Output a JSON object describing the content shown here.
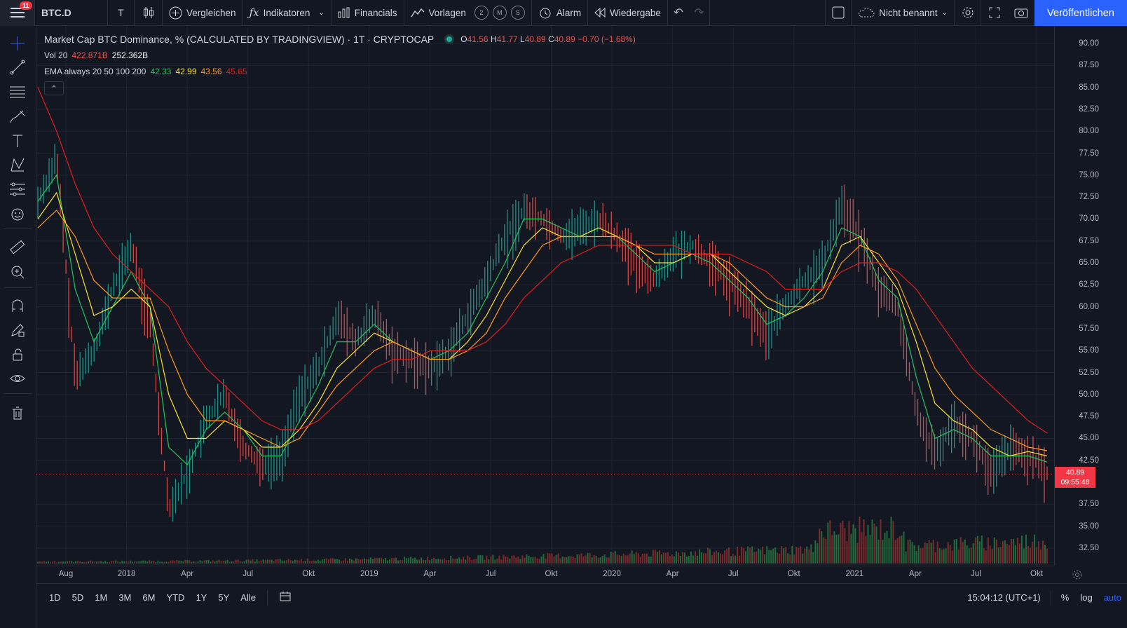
{
  "topbar": {
    "badge": "11",
    "symbol": "BTC.D",
    "interval": "T",
    "compare": "Vergleichen",
    "indicators": "Indikatoren",
    "financials": "Financials",
    "templates": "Vorlagen",
    "circles": [
      "2",
      "M",
      "S"
    ],
    "alarm": "Alarm",
    "replay": "Wiedergabe",
    "layout_name": "Nicht benannt",
    "publish": "Veröffentlichen"
  },
  "legend": {
    "title": "Market Cap BTC Dominance, % (CALCULATED BY TRADINGVIEW) · 1T · CRYPTOCAP",
    "ohlc": {
      "o_label": "O",
      "o": "41.56",
      "h_label": "H",
      "h": "41.77",
      "l_label": "L",
      "l": "40.89",
      "c_label": "C",
      "c": "40.89",
      "change": "−0.70 (−1.68%)"
    },
    "vol": {
      "label": "Vol 20",
      "v1": "422.871B",
      "v2": "252.362B"
    },
    "ema": {
      "label": "EMA always 20 50 100 200",
      "v20": "42.33",
      "v50": "42.99",
      "v100": "43.56",
      "v200": "45.65"
    }
  },
  "colors": {
    "ema20": "#22c55e",
    "ema50": "#fbe32b",
    "ema100": "#ff9a1f",
    "ema200": "#e21d1d",
    "up": "#26a69a",
    "down": "#ef5350",
    "accent": "#2962ff"
  },
  "chart_data": {
    "type": "line",
    "title": "Market Cap BTC Dominance, % (CALCULATED BY TRADINGVIEW) · 1T · CRYPTOCAP",
    "ylim": [
      30.5,
      92
    ],
    "y_ticks": [
      "90.00",
      "87.50",
      "85.00",
      "82.50",
      "80.00",
      "77.50",
      "75.00",
      "72.50",
      "70.00",
      "67.50",
      "65.00",
      "62.50",
      "60.00",
      "57.50",
      "55.00",
      "52.50",
      "50.00",
      "47.50",
      "45.00",
      "42.50",
      "37.50",
      "35.00",
      "32.50"
    ],
    "x_ticks": [
      "Aug",
      "2018",
      "Apr",
      "Jul",
      "Okt",
      "2019",
      "Apr",
      "Jul",
      "Okt",
      "2020",
      "Apr",
      "Jul",
      "Okt",
      "2021",
      "Apr",
      "Jul",
      "Okt"
    ],
    "last_price": "40.89",
    "countdown": "09:55:48",
    "series": [
      {
        "name": "BTC.D",
        "x": [
          "2017-06",
          "2017-07",
          "2017-08",
          "2017-09",
          "2017-10",
          "2017-11",
          "2017-12",
          "2018-01",
          "2018-02",
          "2018-03",
          "2018-04",
          "2018-05",
          "2018-06",
          "2018-07",
          "2018-08",
          "2018-09",
          "2018-10",
          "2018-11",
          "2018-12",
          "2019-01",
          "2019-02",
          "2019-03",
          "2019-04",
          "2019-05",
          "2019-06",
          "2019-07",
          "2019-08",
          "2019-09",
          "2019-10",
          "2019-11",
          "2019-12",
          "2020-01",
          "2020-02",
          "2020-03",
          "2020-04",
          "2020-05",
          "2020-06",
          "2020-07",
          "2020-08",
          "2020-09",
          "2020-10",
          "2020-11",
          "2020-12",
          "2021-01",
          "2021-02",
          "2021-03",
          "2021-04",
          "2021-05",
          "2021-06",
          "2021-07",
          "2021-08",
          "2021-09",
          "2021-10",
          "2021-11",
          "2021-12"
        ],
        "values": [
          72,
          77,
          52,
          55,
          62,
          67,
          58,
          37,
          41,
          47,
          50,
          44,
          42,
          43,
          50,
          53,
          59,
          56,
          59,
          55,
          54,
          53,
          55,
          59,
          63,
          68,
          71,
          70,
          68,
          69,
          70,
          68,
          65,
          63,
          66,
          67,
          65,
          63,
          60,
          57,
          60,
          63,
          65,
          72,
          68,
          62,
          60,
          48,
          43,
          47,
          45,
          41,
          44,
          43,
          41
        ]
      },
      {
        "name": "EMA 20",
        "values": [
          72,
          75,
          62,
          56,
          60,
          64,
          60,
          44,
          42,
          46,
          48,
          46,
          43,
          43,
          47,
          51,
          56,
          56,
          58,
          56,
          55,
          54,
          55,
          57,
          61,
          65,
          70,
          70,
          69,
          68,
          69,
          68,
          66,
          64,
          65,
          66,
          65,
          63,
          61,
          58,
          59,
          61,
          64,
          69,
          68,
          63,
          61,
          52,
          45,
          46,
          45,
          43,
          43,
          43,
          42.3
        ]
      },
      {
        "name": "EMA 50",
        "values": [
          70,
          73,
          66,
          59,
          60,
          62,
          60,
          50,
          45,
          45,
          47,
          46,
          44,
          44,
          46,
          49,
          53,
          55,
          57,
          56,
          55,
          54,
          54,
          56,
          59,
          63,
          67,
          69,
          68,
          68,
          69,
          68,
          67,
          65,
          65,
          66,
          66,
          64,
          62,
          60,
          59,
          60,
          62,
          67,
          68,
          65,
          62,
          56,
          49,
          47,
          46,
          44,
          43,
          43.5,
          43
        ]
      },
      {
        "name": "EMA 100",
        "values": [
          69,
          71,
          68,
          63,
          61,
          61,
          61,
          55,
          50,
          47,
          47,
          46,
          45,
          44,
          45,
          48,
          51,
          53,
          55,
          56,
          55,
          54,
          54,
          55,
          57,
          61,
          64,
          67,
          68,
          68,
          68,
          68,
          67,
          66,
          66,
          66,
          66,
          65,
          63,
          61,
          60,
          60,
          61,
          65,
          67,
          66,
          63,
          58,
          53,
          50,
          48,
          46,
          45,
          44,
          43.6
        ]
      },
      {
        "name": "EMA 200",
        "values": [
          85,
          80,
          74,
          69,
          66,
          64,
          62,
          60,
          56,
          53,
          51,
          49,
          47,
          46,
          46,
          47,
          49,
          51,
          53,
          54,
          54,
          55,
          55,
          55,
          56,
          58,
          61,
          63,
          65,
          66,
          67,
          67,
          67,
          67,
          67,
          66,
          66,
          66,
          65,
          64,
          62,
          62,
          62,
          64,
          65,
          65,
          64,
          62,
          59,
          56,
          53,
          51,
          49,
          47,
          45.6
        ]
      }
    ]
  },
  "timescale": {
    "labels": [
      "Aug",
      "2018",
      "Apr",
      "Jul",
      "Okt",
      "2019",
      "Apr",
      "Jul",
      "Okt",
      "2020",
      "Apr",
      "Jul",
      "Okt",
      "2021",
      "Apr",
      "Jul",
      "Okt"
    ]
  },
  "bottombar": {
    "ranges": [
      "1D",
      "5D",
      "1M",
      "3M",
      "6M",
      "YTD",
      "1Y",
      "5Y",
      "Alle"
    ],
    "clock": "15:04:12 (UTC+1)",
    "pct": "%",
    "log": "log",
    "auto": "auto"
  }
}
